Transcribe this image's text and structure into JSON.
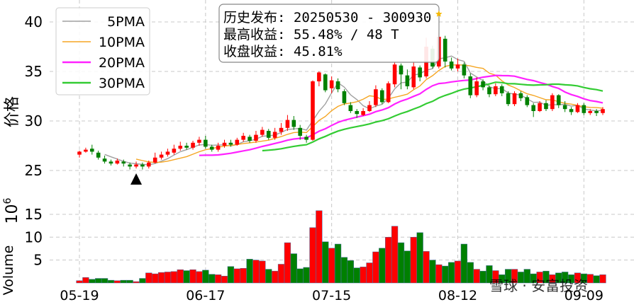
{
  "chart_data": [
    {
      "type": "candlestick",
      "title": "",
      "ylabel": "价格",
      "ylim": [
        23.5,
        41.5
      ],
      "y_ticks": [
        25,
        30,
        35,
        40
      ],
      "x_ticks": [
        {
          "index": 0,
          "label": "05-19"
        },
        {
          "index": 20,
          "label": "06-17"
        },
        {
          "index": 40,
          "label": "07-15"
        },
        {
          "index": 60,
          "label": "08-12"
        },
        {
          "index": 80,
          "label": "09-09"
        }
      ],
      "grid": true,
      "legend_position": "top-left",
      "legend": [
        {
          "label": "5PMA",
          "color": "#a0a0a0"
        },
        {
          "label": "10PMA",
          "color": "#f5a623"
        },
        {
          "label": "20PMA",
          "color": "#ff22ff"
        },
        {
          "label": "30PMA",
          "color": "#33cc33"
        }
      ],
      "annotation_lines": [
        "历史发布: 20250530 - 300930",
        "最高收益: 55.48% / 48 T",
        "收盘收益: 45.81%"
      ],
      "up_color": "#ff0000",
      "down_color": "#008000",
      "buy_marker_index": 9,
      "buy_marker_price": 24.0,
      "highlight_index": 57,
      "highlight_price": 40.8,
      "candles": [
        [
          26.6,
          26.9,
          26.3,
          27.0
        ],
        [
          26.9,
          27.1,
          26.8,
          27.3
        ],
        [
          27.2,
          26.9,
          26.6,
          27.6
        ],
        [
          26.8,
          26.3,
          26.1,
          27.0
        ],
        [
          26.2,
          25.9,
          25.7,
          26.5
        ],
        [
          25.9,
          25.7,
          25.5,
          26.1
        ],
        [
          25.7,
          26.0,
          25.6,
          26.2
        ],
        [
          25.9,
          25.7,
          25.4,
          26.1
        ],
        [
          25.6,
          25.4,
          25.1,
          25.8
        ],
        [
          25.4,
          25.6,
          25.2,
          25.9
        ],
        [
          25.6,
          25.4,
          25.1,
          25.8
        ],
        [
          25.4,
          25.8,
          25.2,
          26.0
        ],
        [
          25.8,
          26.3,
          25.7,
          26.8
        ],
        [
          26.3,
          26.6,
          26.1,
          26.9
        ],
        [
          26.6,
          26.9,
          26.4,
          27.2
        ],
        [
          26.8,
          27.2,
          26.6,
          27.6
        ],
        [
          27.2,
          27.5,
          27.0,
          27.9
        ],
        [
          27.5,
          27.3,
          27.1,
          27.8
        ],
        [
          27.3,
          27.8,
          27.1,
          28.0
        ],
        [
          27.8,
          28.1,
          27.5,
          28.4
        ],
        [
          28.1,
          27.4,
          27.2,
          28.5
        ],
        [
          27.4,
          27.1,
          26.9,
          27.6
        ],
        [
          27.1,
          27.5,
          26.9,
          27.8
        ],
        [
          27.5,
          27.8,
          27.3,
          28.1
        ],
        [
          27.8,
          27.6,
          27.4,
          28.1
        ],
        [
          27.6,
          28.1,
          27.5,
          28.3
        ],
        [
          28.1,
          28.5,
          27.9,
          28.8
        ],
        [
          28.4,
          28.0,
          27.8,
          28.6
        ],
        [
          28.0,
          28.6,
          27.8,
          29.0
        ],
        [
          28.6,
          29.1,
          28.4,
          29.4
        ],
        [
          29.0,
          28.3,
          28.1,
          29.2
        ],
        [
          28.3,
          28.9,
          28.1,
          29.3
        ],
        [
          28.9,
          29.3,
          28.6,
          29.8
        ],
        [
          29.3,
          30.1,
          29.0,
          30.6
        ],
        [
          30.1,
          29.4,
          29.1,
          30.5
        ],
        [
          29.3,
          28.5,
          28.1,
          29.6
        ],
        [
          28.4,
          28.1,
          27.8,
          28.6
        ],
        [
          28.1,
          34.0,
          28.0,
          34.1
        ],
        [
          34.0,
          34.9,
          33.5,
          35.0
        ],
        [
          34.7,
          33.1,
          32.9,
          34.8
        ],
        [
          33.3,
          34.1,
          32.8,
          34.5
        ],
        [
          34.0,
          33.2,
          32.9,
          34.3
        ],
        [
          33.0,
          31.8,
          31.6,
          33.2
        ],
        [
          31.6,
          31.0,
          30.8,
          31.9
        ],
        [
          31.0,
          30.7,
          30.3,
          31.2
        ],
        [
          30.6,
          31.0,
          30.5,
          31.3
        ],
        [
          31.0,
          31.6,
          30.9,
          32.0
        ],
        [
          31.6,
          33.2,
          31.4,
          33.6
        ],
        [
          33.1,
          31.9,
          31.7,
          33.3
        ],
        [
          31.9,
          33.8,
          31.8,
          34.0
        ],
        [
          33.7,
          35.7,
          33.4,
          36.0
        ],
        [
          35.6,
          34.7,
          33.2,
          35.8
        ],
        [
          34.6,
          33.5,
          33.2,
          35.2
        ],
        [
          33.4,
          35.5,
          33.2,
          36.0
        ],
        [
          35.4,
          34.4,
          34.0,
          35.6
        ],
        [
          34.5,
          37.5,
          34.3,
          38.4
        ],
        [
          37.3,
          35.5,
          35.3,
          37.6
        ],
        [
          35.5,
          38.5,
          35.3,
          38.9
        ],
        [
          38.3,
          36.0,
          35.4,
          38.6
        ],
        [
          36.0,
          35.3,
          35.1,
          36.4
        ],
        [
          35.3,
          35.7,
          35.0,
          36.3
        ],
        [
          35.7,
          34.6,
          34.3,
          35.9
        ],
        [
          34.5,
          32.6,
          32.3,
          34.8
        ],
        [
          32.6,
          34.0,
          32.4,
          34.4
        ],
        [
          34.0,
          33.4,
          33.1,
          34.2
        ],
        [
          33.4,
          32.7,
          32.4,
          33.6
        ],
        [
          32.7,
          33.5,
          32.5,
          33.8
        ],
        [
          33.5,
          32.8,
          32.5,
          33.7
        ],
        [
          32.8,
          31.7,
          31.5,
          33.0
        ],
        [
          31.7,
          32.8,
          31.5,
          33.0
        ],
        [
          32.8,
          32.3,
          32.0,
          33.0
        ],
        [
          32.4,
          31.6,
          31.4,
          32.6
        ],
        [
          31.6,
          31.0,
          30.4,
          31.8
        ],
        [
          31.0,
          31.8,
          30.9,
          32.0
        ],
        [
          31.8,
          31.2,
          31.0,
          32.1
        ],
        [
          31.2,
          32.6,
          31.0,
          32.8
        ],
        [
          32.6,
          31.6,
          31.3,
          32.7
        ],
        [
          31.6,
          31.2,
          30.9,
          32.0
        ],
        [
          31.2,
          30.9,
          30.6,
          31.4
        ],
        [
          30.9,
          31.6,
          30.8,
          31.8
        ],
        [
          31.6,
          30.8,
          30.6,
          31.8
        ],
        [
          30.8,
          31.0,
          30.6,
          31.2
        ],
        [
          31.0,
          30.8,
          30.5,
          31.2
        ],
        [
          30.8,
          31.2,
          30.6,
          31.4
        ]
      ]
    },
    {
      "type": "bar",
      "title": "",
      "ylabel": "Volume",
      "y_exponent_label": "1e6",
      "ylim": [
        0,
        17
      ],
      "y_ticks": [
        5,
        10,
        15
      ],
      "grid": true,
      "values": [
        0.5,
        1.2,
        0.8,
        1.0,
        1.0,
        0.6,
        0.5,
        0.6,
        0.6,
        0.3,
        1.0,
        2.2,
        2.0,
        2.3,
        2.4,
        2.5,
        2.9,
        2.7,
        2.9,
        2.5,
        2.8,
        1.9,
        1.8,
        1.5,
        3.6,
        3.1,
        3.2,
        5.2,
        5.0,
        4.8,
        3.0,
        2.6,
        4.1,
        8.8,
        6.4,
        3.1,
        3.4,
        12.1,
        15.8,
        9.0,
        7.6,
        8.5,
        5.6,
        4.9,
        3.3,
        3.5,
        4.4,
        6.8,
        7.6,
        10.0,
        12.4,
        8.8,
        7.0,
        10.0,
        11.0,
        6.9,
        5.0,
        4.0,
        3.7,
        4.5,
        4.8,
        8.5,
        4.5,
        3.0,
        2.6,
        3.8,
        2.7,
        1.8,
        3.0,
        3.0,
        2.4,
        3.0,
        2.0,
        2.4,
        2.6,
        1.8,
        2.2,
        2.4,
        1.8,
        2.2,
        2.0,
        1.9,
        1.6,
        1.8
      ]
    }
  ],
  "watermark": {
    "text": "雪球 · 安富投资"
  }
}
